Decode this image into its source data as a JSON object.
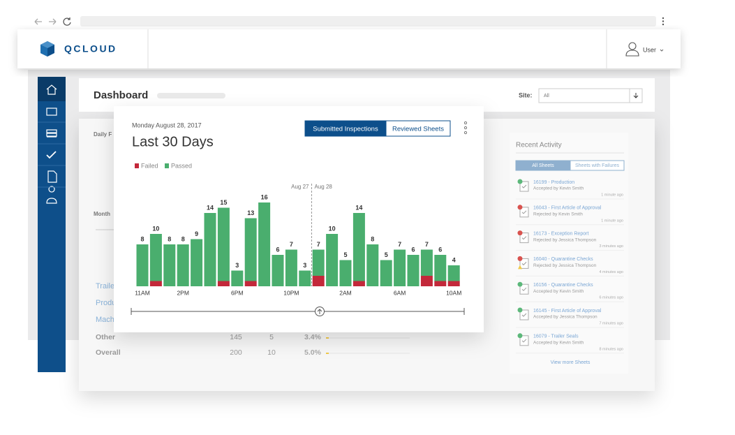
{
  "header": {
    "logo": "QCLOUD",
    "user": "User"
  },
  "dashboard": {
    "title": "Dashboard",
    "site_label": "Site:",
    "site_value": "All",
    "sections": [
      "Daily F",
      "Month"
    ]
  },
  "table": {
    "rows": [
      [
        "Traile"
      ],
      [
        "Produ"
      ],
      [
        "Mach"
      ],
      [
        "Other",
        145,
        5,
        "3.4%"
      ],
      [
        "Overall",
        200,
        10,
        "5.0%"
      ]
    ]
  },
  "chart_data": {
    "type": "bar",
    "stacked": true,
    "date": "Monday August 28, 2017",
    "title": "Last 30 Days",
    "buttons": [
      "Submitted Inspections",
      "Reviewed Sheets"
    ],
    "categories": [
      "11AM",
      null,
      null,
      "2PM",
      null,
      null,
      null,
      "6PM",
      null,
      null,
      null,
      "10PM",
      null,
      null,
      null,
      "2AM",
      null,
      null,
      null,
      "6AM",
      null,
      null,
      null,
      "10AM"
    ],
    "series": [
      {
        "name": "Failed",
        "color": "#c3283a",
        "values": [
          0,
          1,
          0,
          0,
          0,
          0,
          1,
          0,
          1,
          0,
          0,
          0,
          0,
          2,
          0,
          0,
          1,
          0,
          0,
          0,
          0,
          2,
          1,
          1
        ]
      },
      {
        "name": "Passed",
        "color": "#4aae6e",
        "values": [
          8,
          9,
          8,
          8,
          9,
          14,
          14,
          3,
          12,
          16,
          6,
          7,
          3,
          5,
          10,
          5,
          13,
          8,
          5,
          7,
          6,
          5,
          5,
          3
        ]
      }
    ],
    "totals": [
      8,
      10,
      8,
      8,
      9,
      14,
      15,
      3,
      13,
      16,
      6,
      7,
      3,
      7,
      10,
      5,
      14,
      8,
      5,
      7,
      6,
      7,
      6,
      4
    ],
    "annotations": [
      "Aug 27",
      "Aug 28"
    ]
  },
  "recent_activity": {
    "title": "Recent Activity",
    "tabs": [
      "All Sheets",
      "Sheets with Failures"
    ],
    "items": [
      {
        "sheet": "16199 - Production",
        "status": "Accepted by Kevin Smith",
        "time": "1 minute ago",
        "result": "accepted"
      },
      {
        "sheet": "16043 - First Article of Approval",
        "status": "Rejected by Kevin Smith",
        "time": "1 minute ago",
        "result": "rejected"
      },
      {
        "sheet": "16173 - Exception Report",
        "status": "Rejected by Jessica Thompson",
        "time": "3 minutes ago",
        "result": "rejected"
      },
      {
        "sheet": "16040 - Quarantine Checks",
        "status": "Rejected by Jessica Thompson",
        "time": "4 minutes ago",
        "result": "warning"
      },
      {
        "sheet": "16156 - Quarantine Checks",
        "status": "Accepted by Kevin Smith",
        "time": "6 minutes ago",
        "result": "accepted"
      },
      {
        "sheet": "16145 - First Article of Approval",
        "status": "Accepted by Jessica Thompson",
        "time": "7 minutes ago",
        "result": "accepted"
      },
      {
        "sheet": "16079 - Trailer Seals",
        "status": "Accepted by Kevin Smith",
        "time": "8 minutes ago",
        "result": "accepted"
      }
    ],
    "more": "View more Sheets"
  }
}
